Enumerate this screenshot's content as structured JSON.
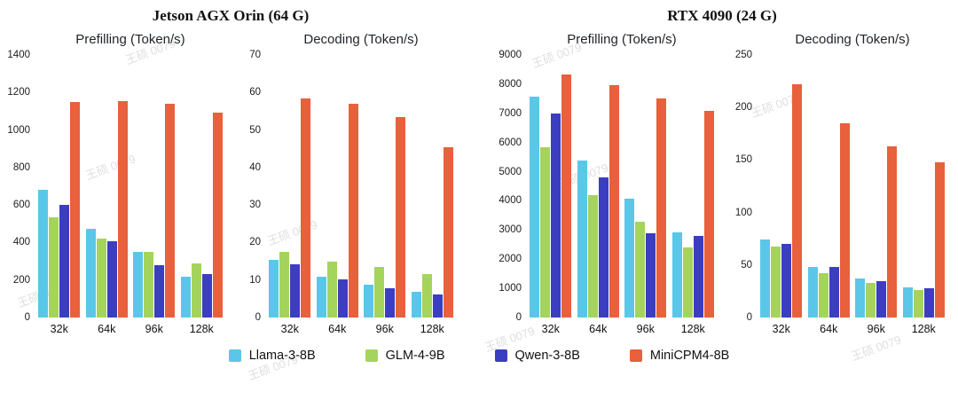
{
  "watermark": "王硕 0079",
  "groups": [
    {
      "header": "Jetson AGX Orin (64 G)"
    },
    {
      "header": "RTX 4090 (24 G)"
    }
  ],
  "legend": [
    {
      "label": "Llama-3-8B",
      "color": "#5bc7e8"
    },
    {
      "label": "GLM-4-9B",
      "color": "#a4d45c"
    },
    {
      "label": "Qwen-3-8B",
      "color": "#3b3ec0"
    },
    {
      "label": "MiniCPM4-8B",
      "color": "#e8603c"
    }
  ],
  "chart_data": [
    {
      "type": "bar",
      "device": "Jetson AGX Orin (64 G)",
      "title": "Prefilling (Token/s)",
      "categories": [
        "32k",
        "64k",
        "96k",
        "128k"
      ],
      "series": [
        {
          "name": "Llama-3-8B",
          "values": [
            680,
            475,
            350,
            220
          ]
        },
        {
          "name": "GLM-4-9B",
          "values": [
            535,
            420,
            350,
            290
          ]
        },
        {
          "name": "Qwen-3-8B",
          "values": [
            600,
            405,
            280,
            230
          ]
        },
        {
          "name": "MiniCPM4-8B",
          "values": [
            1150,
            1155,
            1140,
            1095
          ]
        }
      ],
      "ylim": [
        0,
        1400
      ],
      "ytick_step": 200,
      "grid": false,
      "legend_position": "bottom"
    },
    {
      "type": "bar",
      "device": "Jetson AGX Orin (64 G)",
      "title": "Decoding (Token/s)",
      "categories": [
        "32k",
        "64k",
        "96k",
        "128k"
      ],
      "series": [
        {
          "name": "Llama-3-8B",
          "values": [
            15.3,
            10.8,
            8.7,
            6.8
          ]
        },
        {
          "name": "GLM-4-9B",
          "values": [
            17.6,
            15.0,
            13.4,
            11.7
          ]
        },
        {
          "name": "Qwen-3-8B",
          "values": [
            14.1,
            10.1,
            7.7,
            6.1
          ]
        },
        {
          "name": "MiniCPM4-8B",
          "values": [
            58.5,
            57.0,
            53.5,
            45.5
          ]
        }
      ],
      "ylim": [
        0,
        70
      ],
      "ytick_step": 10,
      "grid": false,
      "legend_position": "bottom"
    },
    {
      "type": "bar",
      "device": "RTX 4090 (24 G)",
      "title": "Prefilling (Token/s)",
      "categories": [
        "32k",
        "64k",
        "96k",
        "128k"
      ],
      "series": [
        {
          "name": "Llama-3-8B",
          "values": [
            7580,
            5380,
            4080,
            2930
          ]
        },
        {
          "name": "GLM-4-9B",
          "values": [
            5830,
            4200,
            3290,
            2390
          ]
        },
        {
          "name": "Qwen-3-8B",
          "values": [
            6980,
            4800,
            2900,
            2810
          ]
        },
        {
          "name": "MiniCPM4-8B",
          "values": [
            8340,
            7980,
            7520,
            7100
          ]
        }
      ],
      "ylim": [
        0,
        9000
      ],
      "ytick_step": 1000,
      "grid": false,
      "legend_position": "bottom"
    },
    {
      "type": "bar",
      "device": "RTX 4090 (24 G)",
      "title": "Decoding (Token/s)",
      "categories": [
        "32k",
        "64k",
        "96k",
        "128k"
      ],
      "series": [
        {
          "name": "Llama-3-8B",
          "values": [
            74,
            48,
            37,
            29
          ]
        },
        {
          "name": "GLM-4-9B",
          "values": [
            68,
            42,
            33,
            26
          ]
        },
        {
          "name": "Qwen-3-8B",
          "values": [
            70,
            48,
            35,
            28
          ]
        },
        {
          "name": "MiniCPM4-8B",
          "values": [
            222,
            185,
            163,
            148
          ]
        }
      ],
      "ylim": [
        0,
        250
      ],
      "ytick_step": 50,
      "grid": false,
      "legend_position": "bottom"
    }
  ]
}
